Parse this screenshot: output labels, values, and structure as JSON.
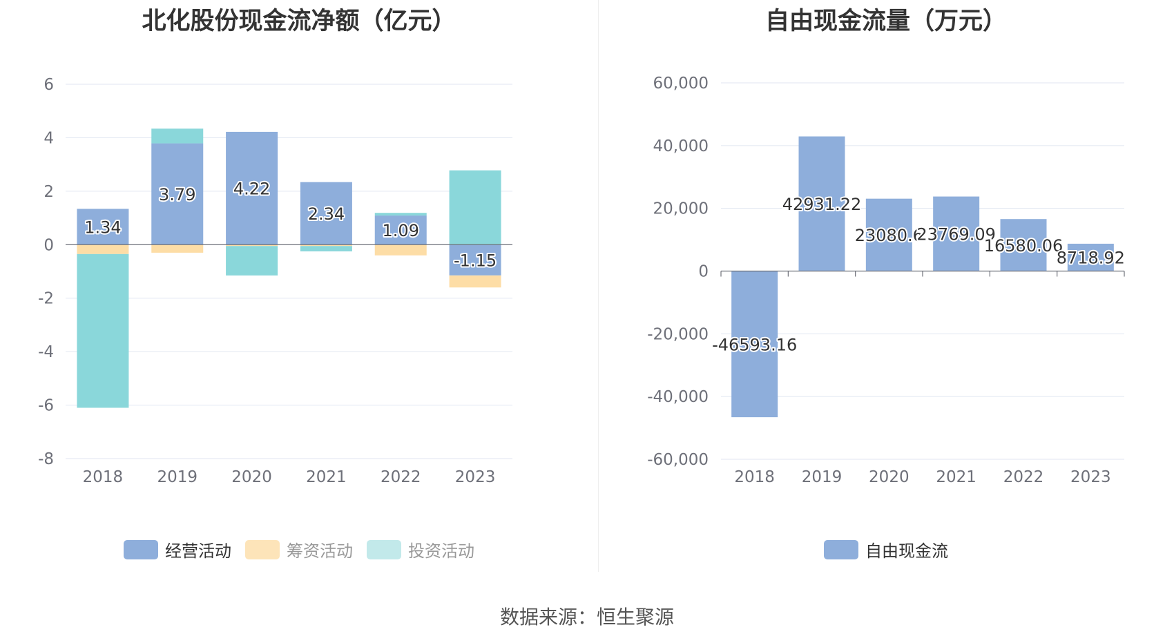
{
  "charts": [
    {
      "id": "cashflow",
      "title": "北化股份现金流净额（亿元）",
      "legend": [
        {
          "label": "经营活动",
          "color": "#8eaedb",
          "muted": false
        },
        {
          "label": "筹资活动",
          "color": "#fde4b9",
          "muted": true
        },
        {
          "label": "投资活动",
          "color": "#c2e9ea",
          "muted": true
        }
      ]
    },
    {
      "id": "fcf",
      "title": "自由现金流量（万元）",
      "legend": [
        {
          "label": "自由现金流",
          "color": "#8eaedb",
          "muted": false
        }
      ]
    }
  ],
  "source": "数据来源：恒生聚源",
  "chart_data": [
    {
      "type": "bar",
      "stacked": true,
      "title": "北化股份现金流净额（亿元）",
      "categories": [
        "2018",
        "2019",
        "2020",
        "2021",
        "2022",
        "2023"
      ],
      "ylim": [
        -8,
        6
      ],
      "yticks": [
        "6",
        "4",
        "2",
        "0",
        "-2",
        "-4",
        "-6",
        "-8"
      ],
      "ytick_values": [
        6,
        4,
        2,
        0,
        -2,
        -4,
        -6,
        -8
      ],
      "grid": true,
      "legend_position": "bottom",
      "series": [
        {
          "name": "经营活动",
          "color": "#8eaedb",
          "values": [
            1.34,
            3.79,
            4.22,
            2.34,
            1.09,
            -1.15
          ],
          "labels": [
            "1.34",
            "3.79",
            "4.22",
            "2.34",
            "1.09",
            "-1.15"
          ]
        },
        {
          "name": "筹资活动",
          "color": "#fddda6",
          "values": [
            -0.35,
            -0.3,
            -0.05,
            -0.05,
            -0.4,
            -0.45
          ]
        },
        {
          "name": "投资活动",
          "color": "#8ad7da",
          "values": [
            -5.75,
            0.55,
            -1.1,
            -0.2,
            0.1,
            2.78
          ]
        }
      ]
    },
    {
      "type": "bar",
      "title": "自由现金流量（万元）",
      "categories": [
        "2018",
        "2019",
        "2020",
        "2021",
        "2022",
        "2023"
      ],
      "ylim": [
        -60000,
        60000
      ],
      "yticks": [
        "60,000",
        "40,000",
        "20,000",
        "0",
        "-20,000",
        "-40,000",
        "-60,000"
      ],
      "ytick_values": [
        60000,
        40000,
        20000,
        0,
        -20000,
        -40000,
        -60000
      ],
      "grid": true,
      "legend_position": "bottom",
      "series": [
        {
          "name": "自由现金流",
          "color": "#8eaedb",
          "values": [
            -46593.16,
            42931.22,
            23080.6,
            23769.09,
            16580.06,
            8718.92
          ],
          "labels": [
            "-46593.16",
            "42931.22",
            "23080.6",
            "23769.09",
            "16580.06",
            "8718.92"
          ]
        }
      ]
    }
  ]
}
